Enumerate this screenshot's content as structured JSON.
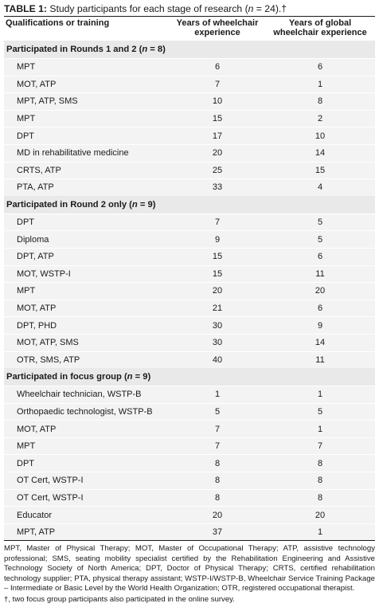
{
  "caption": {
    "label": "TABLE 1:",
    "text_before_n": " Study participants for each stage of research (",
    "n_italic": "n",
    "text_after_n": " = 24).†"
  },
  "headers": {
    "qualifications": "Qualifications or training",
    "years_wheelchair": [
      "Years of wheelchair",
      "experience"
    ],
    "years_global": [
      "Years of global",
      "wheelchair experience"
    ]
  },
  "sections": [
    {
      "title_before": "Participated in Rounds 1 and 2 (",
      "n_italic": "n",
      "title_after": " = 8)",
      "rows": [
        {
          "q": "MPT",
          "years": "6",
          "global": "6"
        },
        {
          "q": "MOT, ATP",
          "years": "7",
          "global": "1"
        },
        {
          "q": "MPT, ATP, SMS",
          "years": "10",
          "global": "8"
        },
        {
          "q": "MPT",
          "years": "15",
          "global": "2"
        },
        {
          "q": "DPT",
          "years": "17",
          "global": "10"
        },
        {
          "q": "MD in rehabilitative medicine",
          "years": "20",
          "global": "14"
        },
        {
          "q": "CRTS, ATP",
          "years": "25",
          "global": "15"
        },
        {
          "q": "PTA, ATP",
          "years": "33",
          "global": "4"
        }
      ]
    },
    {
      "title_before": "Participated in Round 2 only (",
      "n_italic": "n",
      "title_after": " = 9)",
      "rows": [
        {
          "q": "DPT",
          "years": "7",
          "global": "5"
        },
        {
          "q": "Diploma",
          "years": "9",
          "global": "5"
        },
        {
          "q": "DPT, ATP",
          "years": "15",
          "global": "6"
        },
        {
          "q": "MOT, WSTP-I",
          "years": "15",
          "global": "11"
        },
        {
          "q": "MPT",
          "years": "20",
          "global": "20"
        },
        {
          "q": "MOT, ATP",
          "years": "21",
          "global": "6"
        },
        {
          "q": "DPT, PHD",
          "years": "30",
          "global": "9"
        },
        {
          "q": "MOT, ATP, SMS",
          "years": "30",
          "global": "14"
        },
        {
          "q": "OTR, SMS, ATP",
          "years": "40",
          "global": "11"
        }
      ]
    },
    {
      "title_before": "Participated in focus group (",
      "n_italic": "n",
      "title_after": " = 9)",
      "rows": [
        {
          "q": "Wheelchair technician, WSTP-B",
          "years": "1",
          "global": "1"
        },
        {
          "q": "Orthopaedic technologist, WSTP-B",
          "years": "5",
          "global": "5"
        },
        {
          "q": "MOT, ATP",
          "years": "7",
          "global": "1"
        },
        {
          "q": "MPT",
          "years": "7",
          "global": "7"
        },
        {
          "q": "DPT",
          "years": "8",
          "global": "8"
        },
        {
          "q": "OT Cert, WSTP-I",
          "years": "8",
          "global": "8"
        },
        {
          "q": "OT Cert, WSTP-I",
          "years": "8",
          "global": "8"
        },
        {
          "q": "Educator",
          "years": "20",
          "global": "20"
        },
        {
          "q": "MPT, ATP",
          "years": "37",
          "global": "1"
        }
      ]
    }
  ],
  "notes": {
    "abbreviations": "MPT, Master of Physical Therapy; MOT, Master of Occupational Therapy; ATP, assistive technology professional; SMS, seating mobility specialist certified by the Rehabilitation Engineering and Assistive Technology Society of North America; DPT, Doctor of Physical Therapy; CRTS, certified rehabilitation technology supplier; PTA, physical therapy assistant; WSTP-I/WSTP-B, Wheelchair Service Training Package – Intermediate or Basic Level by the World Health Organization; OTR, registered occupational therapist.",
    "footnote": "†, two focus group participants also participated in the online survey."
  }
}
